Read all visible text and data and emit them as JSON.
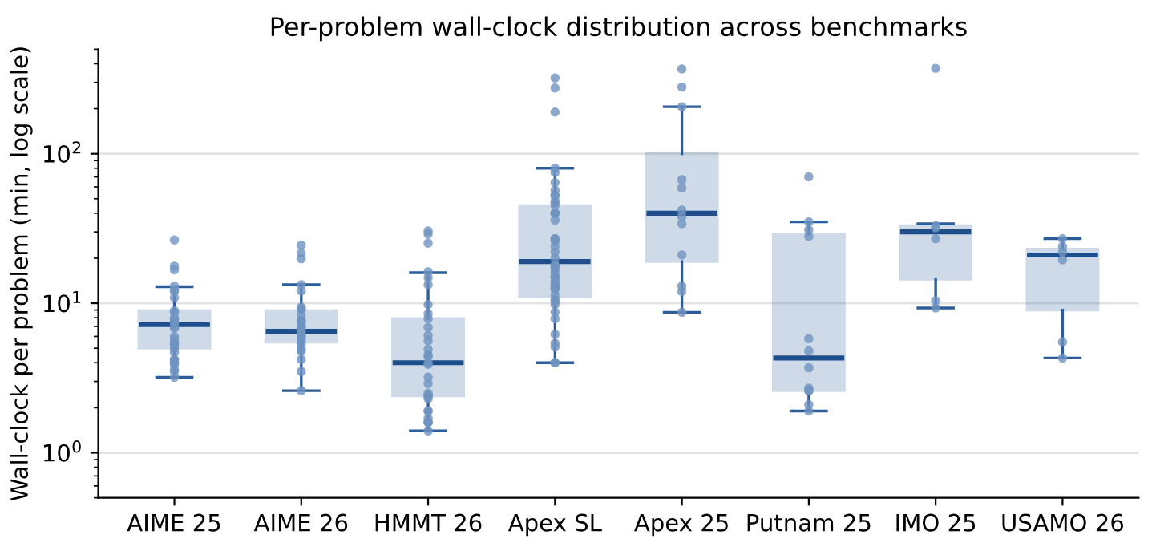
{
  "chart_data": {
    "type": "box",
    "title": "Per-problem wall-clock distribution across benchmarks",
    "ylabel": "Wall-clock per problem (min, log scale)",
    "categories": [
      "AIME 25",
      "AIME 26",
      "HMMT 26",
      "Apex SL",
      "Apex 25",
      "Putnam 25",
      "IMO 25",
      "USAMO 26"
    ],
    "log": "y",
    "ylim": [
      0.5,
      500
    ],
    "yticks": [
      {
        "value": 1,
        "label": "10$^{0}$"
      },
      {
        "value": 10,
        "label": "10$^{1}$"
      },
      {
        "value": 100,
        "label": "10$^{2}$"
      }
    ],
    "grid": "y",
    "legend": false,
    "series": [
      {
        "color": "#2b5d9a",
        "boxes": [
          {
            "low": 3.2,
            "q1": 5.0,
            "median": 7.2,
            "q3": 8.9,
            "high": 12.9
          },
          {
            "low": 2.6,
            "q1": 5.5,
            "median": 6.5,
            "q3": 8.9,
            "high": 13.3
          },
          {
            "low": 1.4,
            "q1": 2.4,
            "median": 4.0,
            "q3": 7.9,
            "high": 16
          },
          {
            "low": 4.0,
            "q1": 11,
            "median": 19,
            "q3": 45,
            "high": 80
          },
          {
            "low": 8.7,
            "q1": 19,
            "median": 40,
            "q3": 100,
            "high": 206
          },
          {
            "low": 1.9,
            "q1": 2.6,
            "median": 4.3,
            "q3": 29,
            "high": 35
          },
          {
            "low": 9.3,
            "q1": 14.5,
            "median": 30,
            "q3": 33,
            "high": 34
          },
          {
            "low": 4.3,
            "q1": 9.0,
            "median": 21,
            "q3": 23,
            "high": 27
          }
        ]
      },
      {
        "type": "scatter",
        "color": "#6f93c0",
        "marker": "circle",
        "x": [
          "AIME 25",
          "AIME 25",
          "AIME 25",
          "AIME 25",
          "AIME 25",
          "AIME 25",
          "AIME 25",
          "AIME 25",
          "AIME 25",
          "AIME 25",
          "AIME 25",
          "AIME 25",
          "AIME 25",
          "AIME 25",
          "AIME 25",
          "AIME 25",
          "AIME 25",
          "AIME 25",
          "AIME 25",
          "AIME 25",
          "AIME 25",
          "AIME 25",
          "AIME 25",
          "AIME 25",
          "AIME 25",
          "AIME 25",
          "AIME 25",
          "AIME 25",
          "AIME 25",
          "AIME 26",
          "AIME 26",
          "AIME 26",
          "AIME 26",
          "AIME 26",
          "AIME 26",
          "AIME 26",
          "AIME 26",
          "AIME 26",
          "AIME 26",
          "AIME 26",
          "AIME 26",
          "AIME 26",
          "AIME 26",
          "AIME 26",
          "AIME 26",
          "AIME 26",
          "AIME 26",
          "AIME 26",
          "AIME 26",
          "AIME 26",
          "AIME 26",
          "AIME 26",
          "AIME 26",
          "AIME 26",
          "AIME 26",
          "AIME 26",
          "AIME 26",
          "HMMT 26",
          "HMMT 26",
          "HMMT 26",
          "HMMT 26",
          "HMMT 26",
          "HMMT 26",
          "HMMT 26",
          "HMMT 26",
          "HMMT 26",
          "HMMT 26",
          "HMMT 26",
          "HMMT 26",
          "HMMT 26",
          "HMMT 26",
          "HMMT 26",
          "HMMT 26",
          "HMMT 26",
          "HMMT 26",
          "HMMT 26",
          "HMMT 26",
          "HMMT 26",
          "HMMT 26",
          "HMMT 26",
          "HMMT 26",
          "HMMT 26",
          "HMMT 26",
          "HMMT 26",
          "HMMT 26",
          "HMMT 26",
          "HMMT 26",
          "Apex SL",
          "Apex SL",
          "Apex SL",
          "Apex SL",
          "Apex SL",
          "Apex SL",
          "Apex SL",
          "Apex SL",
          "Apex SL",
          "Apex SL",
          "Apex SL",
          "Apex SL",
          "Apex SL",
          "Apex SL",
          "Apex SL",
          "Apex SL",
          "Apex SL",
          "Apex SL",
          "Apex SL",
          "Apex SL",
          "Apex SL",
          "Apex SL",
          "Apex SL",
          "Apex SL",
          "Apex SL",
          "Apex SL",
          "Apex SL",
          "Apex SL",
          "Apex SL",
          "Apex SL",
          "Apex SL",
          "Apex SL",
          "Apex SL",
          "Apex SL",
          "Apex SL",
          "Apex SL",
          "Apex SL",
          "Apex SL",
          "Apex SL",
          "Apex SL",
          "Apex SL",
          "Apex SL",
          "Apex SL",
          "Apex SL",
          "Apex SL",
          "Apex 25",
          "Apex 25",
          "Apex 25",
          "Apex 25",
          "Apex 25",
          "Apex 25",
          "Apex 25",
          "Apex 25",
          "Apex 25",
          "Apex 25",
          "Apex 25",
          "Apex 25",
          "Putnam 25",
          "Putnam 25",
          "Putnam 25",
          "Putnam 25",
          "Putnam 25",
          "Putnam 25",
          "Putnam 25",
          "Putnam 25",
          "Putnam 25",
          "Putnam 25",
          "Putnam 25",
          "Putnam 25",
          "IMO 25",
          "IMO 25",
          "IMO 25",
          "IMO 25",
          "IMO 25",
          "IMO 25",
          "USAMO 26",
          "USAMO 26",
          "USAMO 26",
          "USAMO 26",
          "USAMO 26",
          "USAMO 26"
        ],
        "values": [
          26.5,
          17.7,
          16.7,
          13.0,
          12.2,
          12.0,
          10.9,
          8.9,
          8.7,
          8.0,
          7.8,
          7.5,
          7.3,
          7.0,
          6.8,
          6.0,
          5.7,
          5.4,
          5.3,
          5.2,
          5.0,
          4.7,
          4.2,
          4.2,
          4.0,
          3.9,
          3.6,
          3.5,
          3.2,
          24.4,
          21.6,
          19.8,
          13.3,
          12.1,
          9.4,
          9.2,
          9.1,
          8.3,
          7.7,
          7.6,
          7.5,
          7.2,
          6.9,
          6.7,
          6.5,
          6.3,
          6.1,
          6.0,
          5.9,
          5.7,
          5.5,
          5.3,
          4.9,
          4.8,
          4.2,
          3.5,
          2.6,
          30.4,
          29.0,
          25.2,
          16.2,
          14.8,
          13.3,
          9.8,
          8.5,
          7.9,
          6.9,
          6.1,
          5.6,
          4.9,
          4.5,
          4.4,
          4.0,
          3.9,
          3.2,
          2.9,
          2.5,
          2.4,
          2.4,
          2.3,
          1.9,
          1.9,
          1.7,
          1.6,
          1.6,
          1.6,
          1.4,
          321,
          275,
          190,
          80,
          75,
          64,
          57,
          53,
          52,
          48,
          47,
          45,
          40,
          40,
          40,
          36,
          27,
          27,
          26,
          24,
          22,
          20,
          18,
          18,
          17.5,
          17,
          16,
          15,
          15,
          14,
          13.6,
          13,
          12.7,
          12.4,
          11.4,
          10.6,
          10.3,
          9.8,
          8.7,
          7.9,
          6.2,
          5.4,
          5.1,
          4.0,
          4.0,
          369,
          279,
          206,
          67,
          59,
          42,
          38,
          34,
          21,
          13,
          12,
          8.7,
          70,
          35,
          31,
          28,
          5.8,
          4.8,
          3.7,
          2.7,
          2.6,
          2.6,
          2.1,
          1.9,
          372,
          33,
          32,
          27,
          10.4,
          9.3,
          27,
          24,
          22,
          19.5,
          5.5,
          4.3
        ]
      }
    ]
  }
}
